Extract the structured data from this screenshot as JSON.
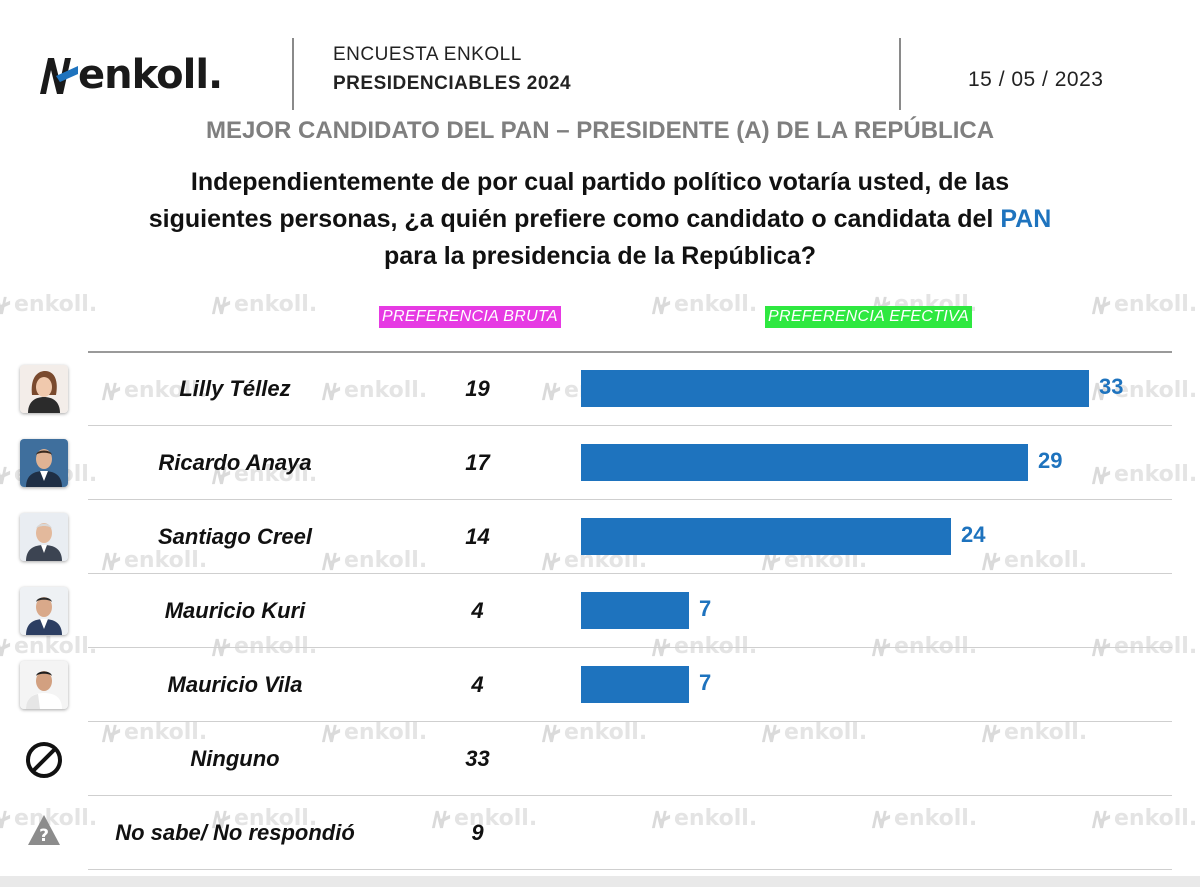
{
  "header": {
    "logo_text": "enkoll.",
    "survey_name": "ENCUESTA ENKOLL",
    "survey_title": "PRESIDENCIABLES 2024",
    "date": "15 / 05 / 2023"
  },
  "subtitle": "MEJOR CANDIDATO DEL PAN – PRESIDENTE (A) DE LA REPÚBLICA",
  "question": {
    "part1": "Independientemente de por cual partido político votaría usted, de las",
    "part2": "siguientes personas, ¿a quién prefiere como candidato o candidata del ",
    "highlight": "PAN",
    "part3": "para la presidencia de la República?"
  },
  "watermark_text": "enkoll.",
  "colors": {
    "bar": "#1e73be",
    "tag_bruta": "#e63ae3",
    "tag_efectiva": "#2ee840",
    "subtitle": "#7f7f7f"
  },
  "chart_data": {
    "type": "bar",
    "orientation": "horizontal",
    "column_headers": {
      "bruta": "PREFERENCIA BRUTA",
      "efectiva": "PREFERENCIA EFECTIVA"
    },
    "categories": [
      "Lilly Téllez",
      "Ricardo Anaya",
      "Santiago Creel",
      "Mauricio Kuri",
      "Mauricio Vila",
      "Ninguno",
      "No sabe/ No respondió"
    ],
    "icons": [
      "avatar-photo",
      "avatar-photo",
      "avatar-photo",
      "avatar-photo",
      "avatar-photo",
      "prohibited-icon",
      "question-warning-icon"
    ],
    "series": [
      {
        "name": "PREFERENCIA BRUTA",
        "values": [
          19,
          17,
          14,
          4,
          4,
          33,
          9
        ]
      },
      {
        "name": "PREFERENCIA EFECTIVA",
        "values": [
          33,
          29,
          24,
          7,
          7,
          null,
          null
        ]
      }
    ],
    "xlim": [
      0,
      35
    ],
    "grid": false,
    "legend": "none"
  }
}
